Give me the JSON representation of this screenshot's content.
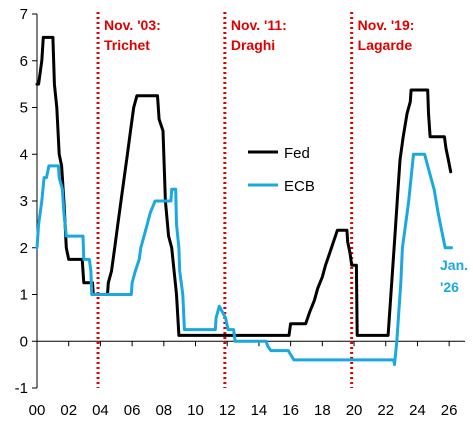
{
  "colors": {
    "fed": "#000000",
    "ecb": "#19a9e0",
    "event_line": "#e00000",
    "axis": "#000000"
  },
  "chart_data": {
    "type": "line",
    "title": "",
    "xlabel": "",
    "ylabel": "",
    "xlim": [
      0,
      27
    ],
    "ylim": [
      -1,
      7
    ],
    "x_ticks": [
      0,
      2,
      4,
      6,
      8,
      10,
      12,
      14,
      16,
      18,
      20,
      22,
      24,
      26
    ],
    "x_tick_labels": [
      "00",
      "02",
      "04",
      "06",
      "08",
      "10",
      "12",
      "14",
      "16",
      "18",
      "20",
      "22",
      "24",
      "26"
    ],
    "y_ticks": [
      -1,
      0,
      1,
      2,
      3,
      4,
      5,
      6,
      7
    ],
    "y_tick_labels": [
      "-1",
      "0",
      "1",
      "2",
      "3",
      "4",
      "5",
      "6",
      "7"
    ],
    "grid": false,
    "legend_position": "middle-right",
    "series": [
      {
        "name": "Fed",
        "color": "#000000",
        "points": [
          [
            0.0,
            5.5
          ],
          [
            0.1,
            5.5
          ],
          [
            0.2,
            5.75
          ],
          [
            0.3,
            6.0
          ],
          [
            0.4,
            6.5
          ],
          [
            1.0,
            6.5
          ],
          [
            1.1,
            5.5
          ],
          [
            1.25,
            5.0
          ],
          [
            1.4,
            4.0
          ],
          [
            1.55,
            3.75
          ],
          [
            1.7,
            3.0
          ],
          [
            1.85,
            2.0
          ],
          [
            2.0,
            1.75
          ],
          [
            2.85,
            1.75
          ],
          [
            2.95,
            1.25
          ],
          [
            3.5,
            1.25
          ],
          [
            3.55,
            1.0
          ],
          [
            4.45,
            1.0
          ],
          [
            4.5,
            1.25
          ],
          [
            4.7,
            1.5
          ],
          [
            4.9,
            2.0
          ],
          [
            5.1,
            2.5
          ],
          [
            5.3,
            3.0
          ],
          [
            5.5,
            3.5
          ],
          [
            5.7,
            4.0
          ],
          [
            5.9,
            4.5
          ],
          [
            6.1,
            5.0
          ],
          [
            6.3,
            5.25
          ],
          [
            7.6,
            5.25
          ],
          [
            7.7,
            4.75
          ],
          [
            7.95,
            4.5
          ],
          [
            8.1,
            3.0
          ],
          [
            8.3,
            2.25
          ],
          [
            8.5,
            2.0
          ],
          [
            8.8,
            1.0
          ],
          [
            8.95,
            0.125
          ],
          [
            15.9,
            0.125
          ],
          [
            16.0,
            0.375
          ],
          [
            16.95,
            0.375
          ],
          [
            17.2,
            0.625
          ],
          [
            17.5,
            0.875
          ],
          [
            17.7,
            1.125
          ],
          [
            18.0,
            1.375
          ],
          [
            18.2,
            1.625
          ],
          [
            18.45,
            1.875
          ],
          [
            18.95,
            2.375
          ],
          [
            19.55,
            2.375
          ],
          [
            19.6,
            2.125
          ],
          [
            19.75,
            1.875
          ],
          [
            19.85,
            1.625
          ],
          [
            20.15,
            1.625
          ],
          [
            20.2,
            0.125
          ],
          [
            22.15,
            0.125
          ],
          [
            22.2,
            0.375
          ],
          [
            22.3,
            0.875
          ],
          [
            22.45,
            1.625
          ],
          [
            22.6,
            2.375
          ],
          [
            22.75,
            3.125
          ],
          [
            22.9,
            3.875
          ],
          [
            23.1,
            4.375
          ],
          [
            23.35,
            4.875
          ],
          [
            23.55,
            5.125
          ],
          [
            23.6,
            5.375
          ],
          [
            24.65,
            5.375
          ],
          [
            24.7,
            4.875
          ],
          [
            24.8,
            4.375
          ],
          [
            25.7,
            4.375
          ],
          [
            25.8,
            4.125
          ],
          [
            25.95,
            3.875
          ],
          [
            26.1,
            3.625
          ]
        ]
      },
      {
        "name": "ECB",
        "color": "#19a9e0",
        "points": [
          [
            0.0,
            2.0
          ],
          [
            0.1,
            2.5
          ],
          [
            0.2,
            2.75
          ],
          [
            0.3,
            3.0
          ],
          [
            0.45,
            3.5
          ],
          [
            0.6,
            3.5
          ],
          [
            0.75,
            3.75
          ],
          [
            1.35,
            3.75
          ],
          [
            1.4,
            3.5
          ],
          [
            1.6,
            3.25
          ],
          [
            1.7,
            2.75
          ],
          [
            1.85,
            2.25
          ],
          [
            2.9,
            2.25
          ],
          [
            2.95,
            1.75
          ],
          [
            3.3,
            1.75
          ],
          [
            3.4,
            1.5
          ],
          [
            3.45,
            1.0
          ],
          [
            5.95,
            1.0
          ],
          [
            6.0,
            1.25
          ],
          [
            6.2,
            1.5
          ],
          [
            6.45,
            1.75
          ],
          [
            6.55,
            2.0
          ],
          [
            6.75,
            2.25
          ],
          [
            6.95,
            2.5
          ],
          [
            7.15,
            2.75
          ],
          [
            7.45,
            3.0
          ],
          [
            8.45,
            3.0
          ],
          [
            8.5,
            3.25
          ],
          [
            8.75,
            3.25
          ],
          [
            8.8,
            2.5
          ],
          [
            8.95,
            2.0
          ],
          [
            9.0,
            1.5
          ],
          [
            9.2,
            1.0
          ],
          [
            9.3,
            0.25
          ],
          [
            11.25,
            0.25
          ],
          [
            11.3,
            0.5
          ],
          [
            11.5,
            0.75
          ],
          [
            11.9,
            0.5
          ],
          [
            12.05,
            0.25
          ],
          [
            12.4,
            0.25
          ],
          [
            12.5,
            0.0
          ],
          [
            14.45,
            0.0
          ],
          [
            14.55,
            -0.1
          ],
          [
            14.75,
            -0.2
          ],
          [
            15.85,
            -0.2
          ],
          [
            16.2,
            -0.4
          ],
          [
            22.5,
            -0.4
          ],
          [
            22.55,
            -0.5
          ],
          [
            22.7,
            0.0
          ],
          [
            22.8,
            0.5
          ],
          [
            22.95,
            1.25
          ],
          [
            23.05,
            2.0
          ],
          [
            23.25,
            2.5
          ],
          [
            23.45,
            3.0
          ],
          [
            23.6,
            3.5
          ],
          [
            23.75,
            4.0
          ],
          [
            24.45,
            4.0
          ],
          [
            24.65,
            3.75
          ],
          [
            24.85,
            3.5
          ],
          [
            25.05,
            3.25
          ],
          [
            25.3,
            2.75
          ],
          [
            25.45,
            2.5
          ],
          [
            25.6,
            2.25
          ],
          [
            25.75,
            2.0
          ],
          [
            26.15,
            2.0
          ]
        ]
      }
    ],
    "events": [
      {
        "x": 3.85,
        "label_line1": "Nov. '03:",
        "label_line2": "Trichet"
      },
      {
        "x": 11.85,
        "label_line1": "Nov. '11:",
        "label_line2": "Draghi"
      },
      {
        "x": 19.85,
        "label_line1": "Nov. '19:",
        "label_line2": "Lagarde"
      }
    ],
    "ecb_end_label": {
      "line1": "Jan.",
      "line2": "'26"
    }
  }
}
